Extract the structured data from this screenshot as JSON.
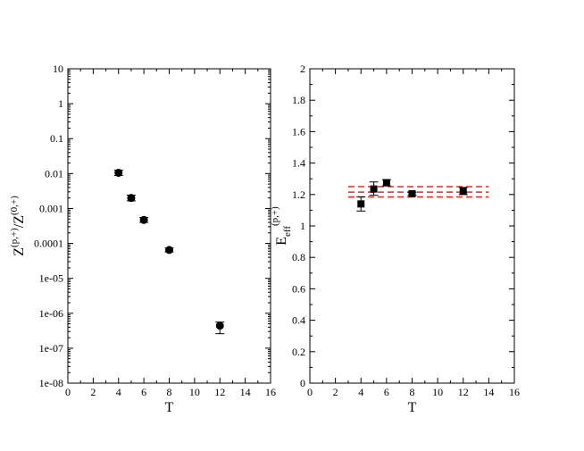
{
  "chart_data": [
    {
      "type": "scatter",
      "xlabel": "T",
      "ylabel": {
        "main": "Z",
        "sup1": "(p,+)",
        "slash": "/",
        "main2": "Z",
        "sup2": "(0,+)"
      },
      "xlim": [
        0,
        16
      ],
      "xticks": [
        "0",
        "2",
        "4",
        "6",
        "8",
        "10",
        "12",
        "14",
        "16"
      ],
      "yscale": "log",
      "ylim": [
        1e-08,
        10
      ],
      "yticks": [
        "1e-08",
        "1e-07",
        "1e-06",
        "1e-05",
        "0.0001",
        "0.001",
        "0.01",
        "0.1",
        "1",
        "10"
      ],
      "marker": "circle",
      "points": [
        {
          "x": 4,
          "y": 0.0105,
          "ylo": 0.0088,
          "yhi": 0.0125
        },
        {
          "x": 5,
          "y": 0.002,
          "ylo": 0.00165,
          "yhi": 0.0024
        },
        {
          "x": 6,
          "y": 0.00047,
          "ylo": 0.0004,
          "yhi": 0.00055
        },
        {
          "x": 8,
          "y": 6.5e-05,
          "ylo": 5.7e-05,
          "yhi": 7.4e-05
        },
        {
          "x": 12,
          "y": 4.4e-07,
          "ylo": 2.6e-07,
          "yhi": 5.6e-07
        }
      ],
      "grid": false
    },
    {
      "type": "scatter",
      "xlabel": "T",
      "ylabel": {
        "main": "E",
        "sub": "eff",
        "sup": "(p,+)"
      },
      "xlim": [
        0,
        16
      ],
      "xticks": [
        "0",
        "2",
        "4",
        "6",
        "8",
        "10",
        "12",
        "14",
        "16"
      ],
      "ylim": [
        0,
        2
      ],
      "yticks": [
        "0",
        "0.2",
        "0.4",
        "0.6",
        "0.8",
        "1",
        "1.2",
        "1.4",
        "1.6",
        "1.8",
        "2"
      ],
      "marker": "square",
      "points": [
        {
          "x": 4,
          "y": 1.14,
          "ylo": 1.095,
          "yhi": 1.185
        },
        {
          "x": 5,
          "y": 1.235,
          "ylo": 1.195,
          "yhi": 1.28
        },
        {
          "x": 6,
          "y": 1.275,
          "ylo": 1.255,
          "yhi": 1.295
        },
        {
          "x": 8,
          "y": 1.205,
          "ylo": 1.195,
          "yhi": 1.215
        },
        {
          "x": 12,
          "y": 1.22,
          "ylo": 1.2,
          "yhi": 1.245
        }
      ],
      "fit_band": {
        "x_start": 3,
        "x_end": 14,
        "center": 1.215,
        "lower": 1.185,
        "upper": 1.25,
        "color": "#e8281e",
        "style": "dashed"
      },
      "grid": false
    }
  ]
}
